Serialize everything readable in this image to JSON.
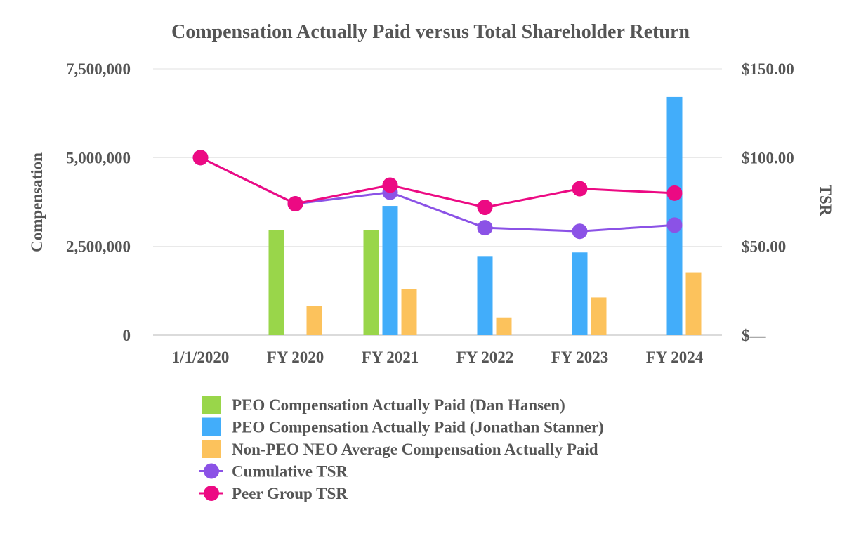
{
  "chart_data": {
    "type": "bar",
    "title": "Compensation Actually Paid versus Total Shareholder Return",
    "categories": [
      "1/1/2020",
      "FY 2020",
      "FY 2021",
      "FY 2022",
      "FY 2023",
      "FY 2024"
    ],
    "y_left": {
      "label": "Compensation",
      "range": [
        0,
        7500000
      ],
      "ticks": [
        0,
        2500000,
        5000000,
        7500000
      ],
      "tick_labels": [
        "0",
        "2,500,000",
        "5,000,000",
        "7,500,000"
      ]
    },
    "y_right": {
      "label": "TSR",
      "range": [
        0,
        150
      ],
      "ticks": [
        0,
        50,
        100,
        150
      ],
      "tick_labels": [
        "$—",
        "$50.00",
        "$100.00",
        "$150.00"
      ]
    },
    "grid": true,
    "legend_position": "bottom",
    "series": [
      {
        "name": "PEO Compensation Actually Paid (Dan Hansen)",
        "type": "bar",
        "axis": "left",
        "color": "#99d64a",
        "values": [
          null,
          2960000,
          2960000,
          null,
          null,
          null
        ]
      },
      {
        "name": "PEO Compensation Actually Paid (Jonathan Stanner)",
        "type": "bar",
        "axis": "left",
        "color": "#42adfa",
        "values": [
          null,
          null,
          3640000,
          2210000,
          2330000,
          6710000
        ]
      },
      {
        "name": "Non-PEO NEO Average Compensation Actually Paid",
        "type": "bar",
        "axis": "left",
        "color": "#fcc25c",
        "values": [
          null,
          820000,
          1290000,
          500000,
          1060000,
          1770000
        ]
      },
      {
        "name": "Cumulative TSR",
        "type": "line",
        "axis": "right",
        "color": "#8b52e6",
        "values": [
          100,
          74,
          80.5,
          60.5,
          58.5,
          62
        ]
      },
      {
        "name": "Peer Group TSR",
        "type": "line",
        "axis": "right",
        "color": "#ec0a83",
        "values": [
          100,
          74,
          84.5,
          72,
          82.5,
          80
        ]
      }
    ]
  }
}
